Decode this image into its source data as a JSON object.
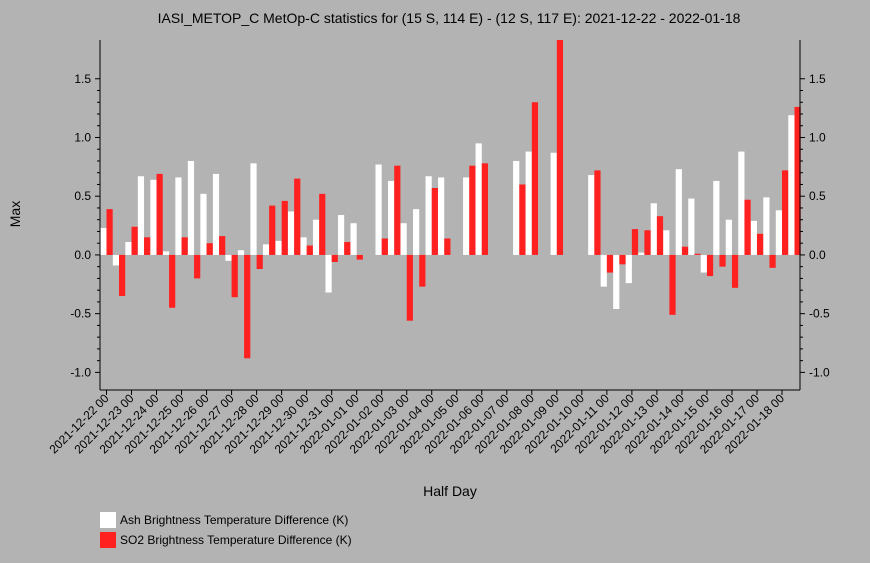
{
  "chart_data": {
    "type": "bar",
    "title": "IASI_METOP_C MetOp-C statistics for (15 S, 114 E) - (12 S, 117 E): 2021-12-22 - 2022-01-18",
    "xlabel": "Half Day",
    "ylabel": "Max",
    "ylim": [
      -1.15,
      1.83
    ],
    "yticks": [
      -1.0,
      -0.5,
      0.0,
      0.5,
      1.0,
      1.5
    ],
    "ytick_labels": [
      "-1.0",
      "-0.5",
      "0.0",
      "0.5",
      "1.0",
      "1.5"
    ],
    "x_tick_labels": [
      "2021-12-22 00",
      "2021-12-23 00",
      "2021-12-24 00",
      "2021-12-25 00",
      "2021-12-26 00",
      "2021-12-27 00",
      "2021-12-28 00",
      "2021-12-29 00",
      "2021-12-30 00",
      "2021-12-31 00",
      "2022-01-01 00",
      "2022-01-02 00",
      "2022-01-03 00",
      "2022-01-04 00",
      "2022-01-05 00",
      "2022-01-06 00",
      "2022-01-07 00",
      "2022-01-08 00",
      "2022-01-09 00",
      "2022-01-10 00",
      "2022-01-11 00",
      "2022-01-12 00",
      "2022-01-13 00",
      "2022-01-14 00",
      "2022-01-15 00",
      "2022-01-16 00",
      "2022-01-17 00",
      "2022-01-18 00"
    ],
    "grid": false,
    "legend_position": "bottom-left",
    "series": [
      {
        "name": "Ash Brightness Temperature Difference (K)",
        "color": "#ffffff",
        "values": [
          0.23,
          -0.09,
          0.11,
          0.67,
          0.64,
          0.03,
          0.66,
          0.8,
          0.52,
          0.69,
          -0.05,
          0.04,
          0.78,
          0.09,
          0.12,
          0.37,
          0.15,
          0.3,
          -0.32,
          0.34,
          0.27,
          null,
          0.77,
          0.63,
          0.27,
          0.39,
          0.67,
          0.66,
          null,
          0.66,
          0.95,
          null,
          null,
          0.8,
          0.88,
          null,
          0.87,
          null,
          null,
          0.68,
          -0.27,
          -0.46,
          -0.24,
          0.02,
          0.44,
          0.21,
          0.73,
          0.48,
          -0.15,
          0.63,
          0.3,
          0.88,
          0.29,
          0.49,
          0.38,
          1.19
        ]
      },
      {
        "name": "SO2 Brightness Temperature Difference (K)",
        "color": "#ff2020",
        "values": [
          0.39,
          -0.35,
          0.24,
          0.15,
          0.69,
          -0.45,
          0.15,
          -0.2,
          0.1,
          0.16,
          -0.36,
          -0.88,
          -0.12,
          0.42,
          0.46,
          0.65,
          0.08,
          0.52,
          -0.06,
          0.11,
          -0.04,
          null,
          0.14,
          0.76,
          -0.56,
          -0.27,
          0.57,
          0.14,
          null,
          0.76,
          0.78,
          null,
          null,
          0.6,
          1.3,
          null,
          1.84,
          null,
          null,
          0.72,
          -0.15,
          -0.08,
          0.22,
          0.21,
          0.33,
          -0.51,
          0.07,
          0.01,
          -0.18,
          -0.1,
          -0.28,
          0.47,
          0.18,
          -0.11,
          0.72,
          1.26
        ]
      }
    ]
  }
}
